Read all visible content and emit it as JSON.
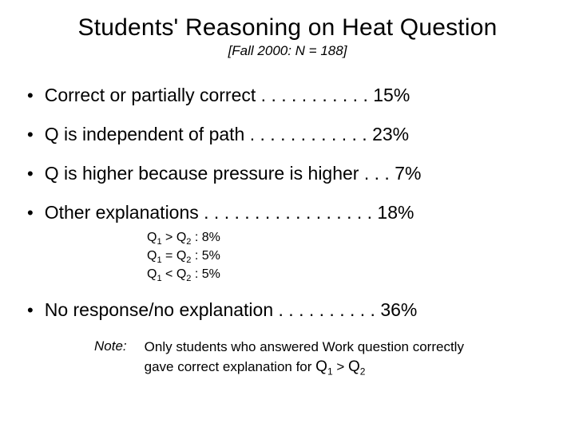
{
  "title": "Students' Reasoning on Heat Question",
  "subtitle": "[Fall 2000: N = 188]",
  "bullets": [
    {
      "text": "Correct or partially correct . . . . . . . . . . . 15%"
    },
    {
      "text": "Q is independent of path . . . . . . . . . . . . 23%"
    },
    {
      "text": "Q is higher because pressure is higher . . . 7%"
    },
    {
      "text": "Other explanations . . . . . . . . . . . . . . . . . 18%"
    },
    {
      "text": "No response/no explanation . . . . . . . . . . 36%"
    }
  ],
  "sub_items": [
    {
      "left": "Q",
      "l1": "1",
      "cmp": " > Q",
      "l2": "2",
      "tail": " :  8%"
    },
    {
      "left": "Q",
      "l1": "1",
      "cmp": " = Q",
      "l2": "2",
      "tail": " :  5%"
    },
    {
      "left": "Q",
      "l1": "1",
      "cmp": " < Q",
      "l2": "2",
      "tail": " :  5%"
    }
  ],
  "note": {
    "label": "Note:",
    "line1": "Only students who answered Work question correctly",
    "line2a": "gave correct explanation for ",
    "q1": "Q",
    "s1": "1",
    "gt": " > ",
    "q2": "Q",
    "s2": "2"
  },
  "colors": {
    "background": "#ffffff",
    "text": "#000000"
  },
  "fonts": {
    "title_size": 30,
    "body_size": 23,
    "sub_size": 16,
    "note_size": 17
  }
}
